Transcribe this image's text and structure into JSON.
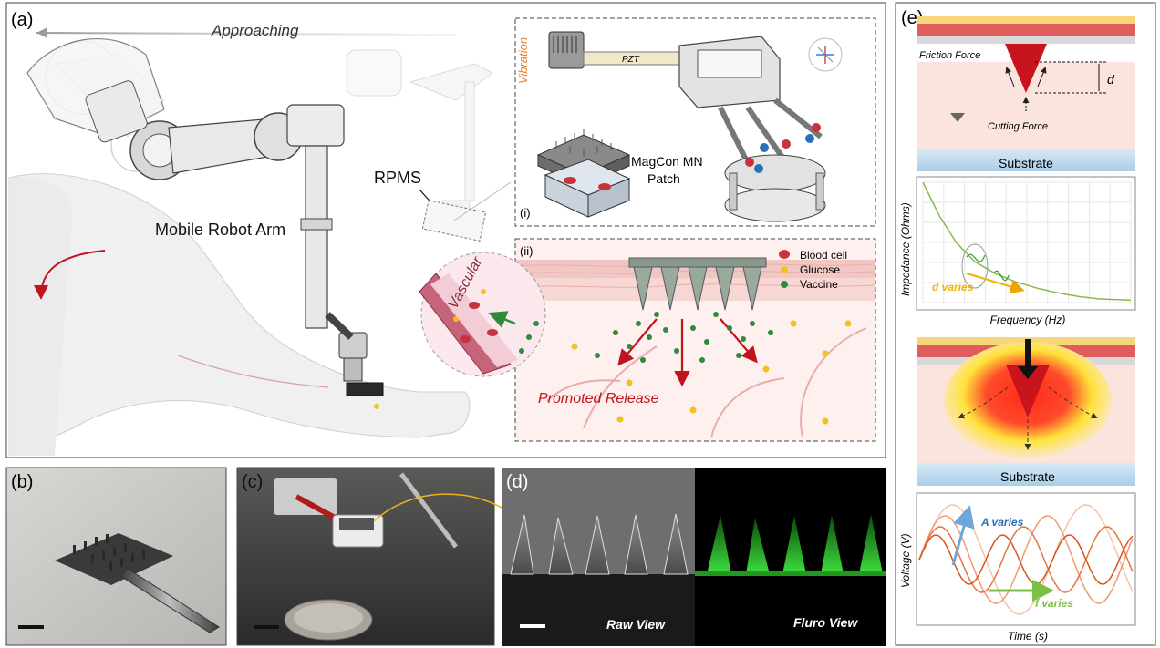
{
  "panels": {
    "a": {
      "label": "(a)",
      "approaching": "Approaching",
      "rpms": "RPMS",
      "robot_arm": "Mobile Robot Arm",
      "inset_i": {
        "label": "(i)",
        "vibration": "Vibration",
        "pzt": "PZT",
        "patch_line1": "MagCon MN",
        "patch_line2": "Patch"
      },
      "inset_ii": {
        "label": "(ii)",
        "vascular": "Vascular",
        "promoted_release": "Promoted Release",
        "legend": [
          "Blood cell",
          "Glucose",
          "Vaccine"
        ]
      }
    },
    "b": {
      "label": "(b)"
    },
    "c": {
      "label": "(c)"
    },
    "d": {
      "label": "(d)",
      "raw_view": "Raw View",
      "fluro_view": "Fluro View"
    },
    "e": {
      "label": "(e)",
      "friction_force": "Friction Force",
      "cutting_force": "Cutting Force",
      "depth": "d",
      "substrate_top": "Substrate",
      "substrate_bottom": "Substrate",
      "impedance_chart": {
        "ylabel": "Impedance (Ohms)",
        "xlabel": "Frequency (Hz)",
        "annotation": "d varies"
      },
      "voltage_chart": {
        "ylabel": "Voltage (V)",
        "xlabel": "Time (s)",
        "annotation_a": "A varies",
        "annotation_f": "f varies"
      }
    }
  },
  "colors": {
    "blood_cell": "#c8323c",
    "glucose": "#f2c21a",
    "vaccine": "#2e8b3e",
    "release_arrow": "#c0141c",
    "vibration_text": "#e8832a",
    "d_varies": "#f0b400",
    "a_varies": "#2a6fb8",
    "f_varies": "#7cc242",
    "impedance_curve": "#8ab84a",
    "sine": "#e0652a",
    "substrate": "#bcd8ec",
    "skin": "#fbe4de"
  },
  "chart_data": [
    {
      "type": "line",
      "title": "",
      "xlabel": "Frequency (Hz)",
      "ylabel": "Impedance (Ohms)",
      "series": [
        {
          "x": [
            0.0,
            0.08,
            0.16,
            0.25,
            0.35,
            0.45,
            0.55,
            0.65,
            0.75,
            0.85,
            1.0
          ],
          "values": [
            1.0,
            0.72,
            0.5,
            0.34,
            0.24,
            0.17,
            0.12,
            0.08,
            0.05,
            0.03,
            0.02
          ]
        }
      ]
    },
    {
      "type": "line",
      "title": "",
      "xlabel": "Time (s)",
      "ylabel": "Voltage (V)",
      "series": [
        {
          "amplitude": 1.0,
          "frequency": 1.0
        },
        {
          "amplitude": 0.8,
          "frequency": 1.3
        },
        {
          "amplitude": 0.6,
          "frequency": 1.6
        },
        {
          "amplitude": 0.45,
          "frequency": 2.0
        }
      ]
    }
  ]
}
